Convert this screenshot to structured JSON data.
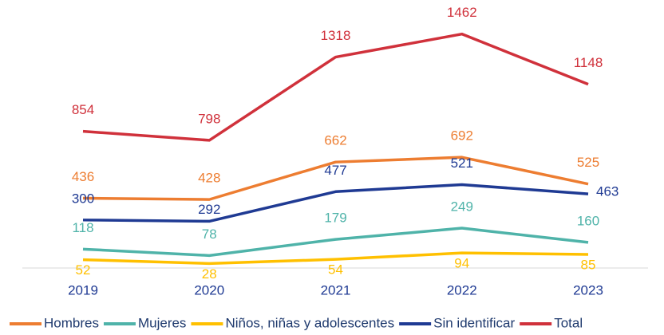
{
  "chart_data": {
    "type": "line",
    "categories": [
      "2019",
      "2020",
      "2021",
      "2022",
      "2023"
    ],
    "series": [
      {
        "name": "Hombres",
        "color": "#ed7d31",
        "values": [
          436,
          428,
          662,
          692,
          525
        ]
      },
      {
        "name": "Mujeres",
        "color": "#4fb3a9",
        "values": [
          118,
          78,
          179,
          249,
          160
        ]
      },
      {
        "name": "Niños, niñas y adolescentes",
        "color": "#ffc000",
        "values": [
          52,
          28,
          54,
          94,
          85
        ]
      },
      {
        "name": "Sin identificar",
        "color": "#1f3a93",
        "values": [
          300,
          292,
          477,
          521,
          463
        ]
      },
      {
        "name": "Total",
        "color": "#d0313b",
        "values": [
          854,
          798,
          1318,
          1462,
          1148
        ]
      }
    ],
    "ylim": [
      0,
      1600
    ],
    "legend": "bottom"
  }
}
